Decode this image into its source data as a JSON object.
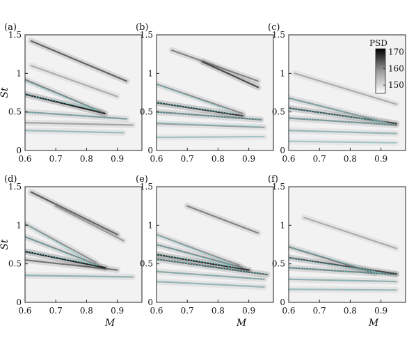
{
  "chart_data": {
    "type": "heatmap",
    "xlabel": "M",
    "ylabel": "St",
    "xlim": [
      0.6,
      0.98
    ],
    "ylim": [
      0,
      1.5
    ],
    "xticks": [
      "0.6",
      "0.7",
      "0.8",
      "0.9"
    ],
    "yticks": [
      "0",
      "0.5",
      "1",
      "1.5"
    ],
    "colorbar": {
      "title": "PSD",
      "ticks": [
        "170",
        "160",
        "150"
      ],
      "range": [
        145,
        172
      ]
    },
    "overlay_color": "#5fd0d0",
    "panels": [
      {
        "label": "(a)",
        "bands": [
          {
            "x": [
              0.6,
              0.92
            ],
            "y": [
              0.26,
              0.23
            ],
            "v": 152
          },
          {
            "x": [
              0.6,
              0.95
            ],
            "y": [
              0.36,
              0.33
            ],
            "v": 154
          },
          {
            "x": [
              0.6,
              0.93
            ],
            "y": [
              0.5,
              0.41
            ],
            "v": 157
          },
          {
            "x": [
              0.6,
              0.86
            ],
            "y": [
              0.73,
              0.48
            ],
            "v": 170
          },
          {
            "x": [
              0.6,
              0.85
            ],
            "y": [
              0.92,
              0.5
            ],
            "v": 158
          },
          {
            "x": [
              0.62,
              0.93
            ],
            "y": [
              1.42,
              0.9
            ],
            "v": 162
          },
          {
            "x": [
              0.62,
              0.9
            ],
            "y": [
              1.1,
              0.7
            ],
            "v": 153
          }
        ],
        "modes": [
          {
            "x": [
              0.6,
              0.92
            ],
            "y": [
              0.26,
              0.23
            ]
          },
          {
            "x": [
              0.6,
              0.93
            ],
            "y": [
              0.5,
              0.41
            ]
          },
          {
            "x": [
              0.6,
              0.84
            ],
            "y": [
              0.73,
              0.52
            ]
          },
          {
            "x": [
              0.6,
              0.83
            ],
            "y": [
              0.9,
              0.53
            ]
          }
        ]
      },
      {
        "label": "(b)",
        "bands": [
          {
            "x": [
              0.6,
              0.95
            ],
            "y": [
              0.17,
              0.18
            ],
            "v": 151
          },
          {
            "x": [
              0.6,
              0.95
            ],
            "y": [
              0.35,
              0.3
            ],
            "v": 155
          },
          {
            "x": [
              0.6,
              0.94
            ],
            "y": [
              0.5,
              0.4
            ],
            "v": 160
          },
          {
            "x": [
              0.6,
              0.88
            ],
            "y": [
              0.62,
              0.45
            ],
            "v": 168
          },
          {
            "x": [
              0.6,
              0.88
            ],
            "y": [
              0.86,
              0.48
            ],
            "v": 157
          },
          {
            "x": [
              0.65,
              0.93
            ],
            "y": [
              1.3,
              0.9
            ],
            "v": 158
          },
          {
            "x": [
              0.75,
              0.93
            ],
            "y": [
              1.15,
              0.82
            ],
            "v": 165
          }
        ],
        "modes": [
          {
            "x": [
              0.6,
              0.95
            ],
            "y": [
              0.17,
              0.18
            ]
          },
          {
            "x": [
              0.6,
              0.94
            ],
            "y": [
              0.36,
              0.31
            ]
          },
          {
            "x": [
              0.6,
              0.94
            ],
            "y": [
              0.5,
              0.4
            ]
          },
          {
            "x": [
              0.6,
              0.86
            ],
            "y": [
              0.62,
              0.47
            ]
          },
          {
            "x": [
              0.6,
              0.84
            ],
            "y": [
              0.86,
              0.51
            ]
          }
        ]
      },
      {
        "label": "(c)",
        "bands": [
          {
            "x": [
              0.6,
              0.95
            ],
            "y": [
              0.12,
              0.1
            ],
            "v": 150
          },
          {
            "x": [
              0.6,
              0.95
            ],
            "y": [
              0.26,
              0.22
            ],
            "v": 153
          },
          {
            "x": [
              0.6,
              0.95
            ],
            "y": [
              0.42,
              0.33
            ],
            "v": 158
          },
          {
            "x": [
              0.6,
              0.95
            ],
            "y": [
              0.55,
              0.35
            ],
            "v": 165
          },
          {
            "x": [
              0.6,
              0.92
            ],
            "y": [
              0.68,
              0.36
            ],
            "v": 157
          },
          {
            "x": [
              0.62,
              0.95
            ],
            "y": [
              1.0,
              0.6
            ],
            "v": 153
          }
        ],
        "modes": [
          {
            "x": [
              0.6,
              0.95
            ],
            "y": [
              0.12,
              0.1
            ]
          },
          {
            "x": [
              0.6,
              0.95
            ],
            "y": [
              0.26,
              0.22
            ]
          },
          {
            "x": [
              0.6,
              0.95
            ],
            "y": [
              0.42,
              0.33
            ]
          },
          {
            "x": [
              0.6,
              0.92
            ],
            "y": [
              0.55,
              0.36
            ]
          },
          {
            "x": [
              0.6,
              0.9
            ],
            "y": [
              0.68,
              0.38
            ]
          }
        ]
      },
      {
        "label": "(d)",
        "bands": [
          {
            "x": [
              0.6,
              0.95
            ],
            "y": [
              0.35,
              0.33
            ],
            "v": 154
          },
          {
            "x": [
              0.6,
              0.9
            ],
            "y": [
              0.55,
              0.42
            ],
            "v": 160
          },
          {
            "x": [
              0.6,
              0.86
            ],
            "y": [
              0.66,
              0.45
            ],
            "v": 171
          },
          {
            "x": [
              0.6,
              0.84
            ],
            "y": [
              0.85,
              0.48
            ],
            "v": 158
          },
          {
            "x": [
              0.6,
              0.83
            ],
            "y": [
              1.02,
              0.52
            ],
            "v": 156
          },
          {
            "x": [
              0.62,
              0.9
            ],
            "y": [
              1.43,
              0.88
            ],
            "v": 163
          },
          {
            "x": [
              0.7,
              0.92
            ],
            "y": [
              1.25,
              0.8
            ],
            "v": 155
          }
        ],
        "modes": [
          {
            "x": [
              0.6,
              0.95
            ],
            "y": [
              0.35,
              0.33
            ]
          },
          {
            "x": [
              0.6,
              0.84
            ],
            "y": [
              0.66,
              0.48
            ]
          },
          {
            "x": [
              0.6,
              0.82
            ],
            "y": [
              0.85,
              0.5
            ]
          },
          {
            "x": [
              0.6,
              0.8
            ],
            "y": [
              1.02,
              0.55
            ]
          }
        ]
      },
      {
        "label": "(e)",
        "bands": [
          {
            "x": [
              0.6,
              0.95
            ],
            "y": [
              0.27,
              0.2
            ],
            "v": 153
          },
          {
            "x": [
              0.6,
              0.95
            ],
            "y": [
              0.4,
              0.3
            ],
            "v": 155
          },
          {
            "x": [
              0.6,
              0.96
            ],
            "y": [
              0.56,
              0.36
            ],
            "v": 163
          },
          {
            "x": [
              0.6,
              0.9
            ],
            "y": [
              0.62,
              0.42
            ],
            "v": 169
          },
          {
            "x": [
              0.6,
              0.88
            ],
            "y": [
              0.75,
              0.45
            ],
            "v": 158
          },
          {
            "x": [
              0.6,
              0.87
            ],
            "y": [
              0.88,
              0.48
            ],
            "v": 156
          },
          {
            "x": [
              0.7,
              0.93
            ],
            "y": [
              1.25,
              0.9
            ],
            "v": 158
          }
        ],
        "modes": [
          {
            "x": [
              0.6,
              0.95
            ],
            "y": [
              0.27,
              0.2
            ]
          },
          {
            "x": [
              0.6,
              0.95
            ],
            "y": [
              0.4,
              0.3
            ]
          },
          {
            "x": [
              0.6,
              0.96
            ],
            "y": [
              0.56,
              0.36
            ]
          },
          {
            "x": [
              0.6,
              0.87
            ],
            "y": [
              0.62,
              0.45
            ]
          },
          {
            "x": [
              0.6,
              0.85
            ],
            "y": [
              0.75,
              0.47
            ]
          },
          {
            "x": [
              0.6,
              0.84
            ],
            "y": [
              0.88,
              0.5
            ]
          }
        ]
      },
      {
        "label": "(f)",
        "bands": [
          {
            "x": [
              0.6,
              0.95
            ],
            "y": [
              0.17,
              0.16
            ],
            "v": 152
          },
          {
            "x": [
              0.6,
              0.95
            ],
            "y": [
              0.3,
              0.27
            ],
            "v": 154
          },
          {
            "x": [
              0.6,
              0.95
            ],
            "y": [
              0.45,
              0.36
            ],
            "v": 160
          },
          {
            "x": [
              0.6,
              0.95
            ],
            "y": [
              0.58,
              0.37
            ],
            "v": 165
          },
          {
            "x": [
              0.6,
              0.88
            ],
            "y": [
              0.72,
              0.38
            ],
            "v": 159
          },
          {
            "x": [
              0.65,
              0.95
            ],
            "y": [
              1.1,
              0.7
            ],
            "v": 153
          }
        ],
        "modes": [
          {
            "x": [
              0.6,
              0.95
            ],
            "y": [
              0.17,
              0.16
            ]
          },
          {
            "x": [
              0.6,
              0.95
            ],
            "y": [
              0.3,
              0.27
            ]
          },
          {
            "x": [
              0.6,
              0.95
            ],
            "y": [
              0.45,
              0.36
            ]
          },
          {
            "x": [
              0.6,
              0.9
            ],
            "y": [
              0.58,
              0.38
            ]
          },
          {
            "x": [
              0.6,
              0.88
            ],
            "y": [
              0.72,
              0.4
            ]
          }
        ]
      }
    ]
  }
}
